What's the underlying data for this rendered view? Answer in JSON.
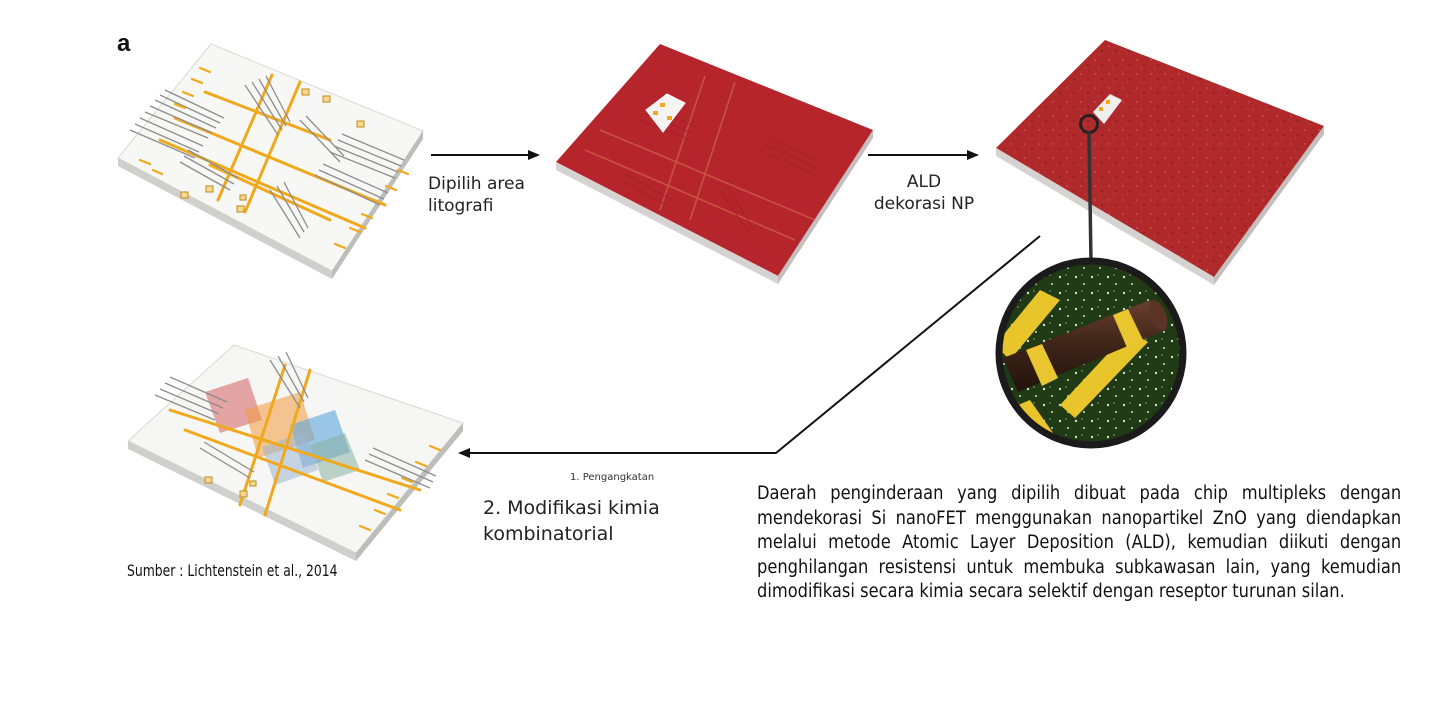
{
  "panel_label": "a",
  "steps": {
    "lithography": [
      "Dipilih area",
      "litografi"
    ],
    "ald": [
      "ALD",
      "dekorasi NP"
    ],
    "lift_off": "1. Pengangkatan",
    "modification": [
      "2. Modifikasi kimia",
      "kombinatorial"
    ]
  },
  "source": "Sumber : Lichtenstein et al., 2014",
  "caption": "Daerah penginderaan yang dipilih dibuat pada chip multipleks dengan mendekorasi Si nanoFET menggunakan nanopartikel ZnO yang diendapkan melalui metode Atomic Layer Deposition (ALD), kemudian diikuti dengan penghilangan resistensi untuk membuka subkawasan lain, yang kemudian dimodifikasi secara kimia secara selektif dengan reseptor turunan silan.",
  "colors": {
    "resist_red": "#b5252b",
    "electrode_gold": "#f0a91c",
    "chip_white": "#f6f6f4",
    "nanowire_brown": "#4a2a1c",
    "substrate_green": "#1e3b12"
  }
}
